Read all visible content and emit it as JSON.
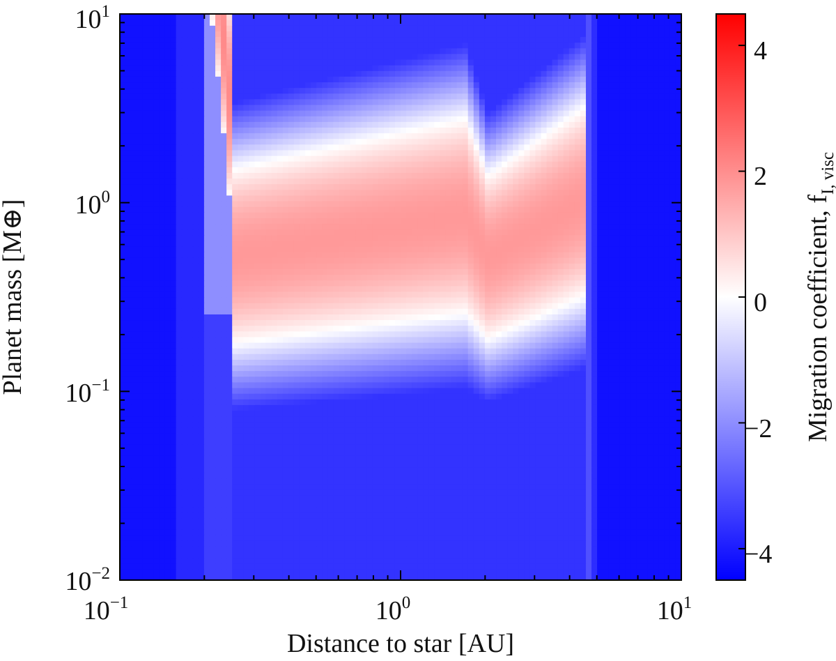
{
  "chart_data": {
    "type": "heatmap",
    "title": "",
    "xlabel": "Distance to star [AU]",
    "ylabel": "Planet mass [M⊕]",
    "x_scale": "log",
    "y_scale": "log",
    "xlim": [
      0.1,
      10
    ],
    "ylim": [
      0.01,
      10
    ],
    "x_ticks": [
      {
        "value": 0.1,
        "base": "10",
        "exp": "−1"
      },
      {
        "value": 1,
        "base": "10",
        "exp": "0"
      },
      {
        "value": 10,
        "base": "10",
        "exp": "1"
      }
    ],
    "y_ticks": [
      {
        "value": 0.01,
        "base": "10",
        "exp": "−2"
      },
      {
        "value": 0.1,
        "base": "10",
        "exp": "−1"
      },
      {
        "value": 1,
        "base": "10",
        "exp": "0"
      },
      {
        "value": 10,
        "base": "10",
        "exp": "1"
      }
    ],
    "colorbar": {
      "label": "Migration coefficient, f",
      "label_sub": "I, visc",
      "range": [
        -4.5,
        4.5
      ],
      "ticks": [
        {
          "value": 4,
          "label": "4"
        },
        {
          "value": 2,
          "label": "2"
        },
        {
          "value": 0,
          "label": "0"
        },
        {
          "value": -2,
          "label": "−2"
        },
        {
          "value": -4,
          "label": "−4"
        }
      ],
      "colors": {
        "low": "#0000ff",
        "mid": "#ffffff",
        "high": "#ff0000"
      }
    },
    "grid": false,
    "field_description": {
      "background_value": -4.2,
      "x_breakpoints_au": [
        0.1,
        0.16,
        0.2,
        0.25,
        1.7,
        2.05,
        4.5,
        5.0,
        10
      ],
      "outward_band_lower_mass": [
        [
          0.25,
          0.18
        ],
        [
          1.7,
          0.26
        ],
        [
          2.05,
          0.19
        ],
        [
          4.5,
          0.32
        ]
      ],
      "outward_band_upper_mass": [
        [
          0.25,
          1.5
        ],
        [
          1.7,
          2.8
        ],
        [
          2.05,
          1.4
        ],
        [
          4.5,
          3.2
        ]
      ],
      "peak_value": 1.8
    }
  }
}
